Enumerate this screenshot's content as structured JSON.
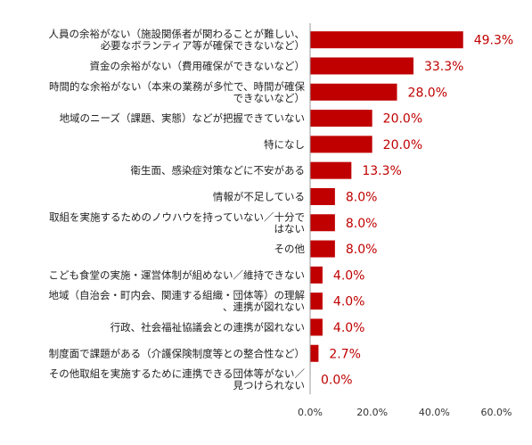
{
  "chart_data": {
    "type": "bar",
    "orientation": "horizontal",
    "title": "",
    "xlabel": "",
    "ylabel": "",
    "xlim": [
      0,
      60
    ],
    "grid": false,
    "legend": "none",
    "bar_color": "#c00000",
    "label_color": "#c00000",
    "x_ticks": [
      "0.0%",
      "20.0%",
      "40.0%",
      "60.0%"
    ],
    "categories": [
      [
        "人員の余裕がない（施設関係者が関わることが難しい、",
        "必要なボランティア等が確保できないなど）"
      ],
      [
        "資金の余裕がない（費用確保ができないなど）"
      ],
      [
        "時間的な余裕がない（本来の業務が多忙で、時間が確保",
        "できないなど）"
      ],
      [
        "地域のニーズ（課題、実態）などが把握できていない"
      ],
      [
        "特になし"
      ],
      [
        "衛生面、感染症対策などに不安がある"
      ],
      [
        "情報が不足している"
      ],
      [
        "取組を実施するためのノウハウを持っていない／十分で",
        "はない"
      ],
      [
        "その他"
      ],
      [
        "こども食堂の実施・運営体制が組めない／維持できない"
      ],
      [
        "地域（自治会・町内会、関連する組織・団体等）の理解",
        "、連携が図れない"
      ],
      [
        "行政、社会福祉協議会との連携が図れない"
      ],
      [
        "制度面で課題がある（介護保険制度等との整合性など）"
      ],
      [
        "その他取組を実施するために連携できる団体等がない／",
        "見つけられない"
      ]
    ],
    "values": [
      49.3,
      33.3,
      28.0,
      20.0,
      20.0,
      13.3,
      8.0,
      8.0,
      8.0,
      4.0,
      4.0,
      4.0,
      2.7,
      0.0
    ],
    "value_labels": [
      "49.3%",
      "33.3%",
      "28.0%",
      "20.0%",
      "20.0%",
      "13.3%",
      "8.0%",
      "8.0%",
      "8.0%",
      "4.0%",
      "4.0%",
      "4.0%",
      "2.7%",
      "0.0%"
    ]
  }
}
